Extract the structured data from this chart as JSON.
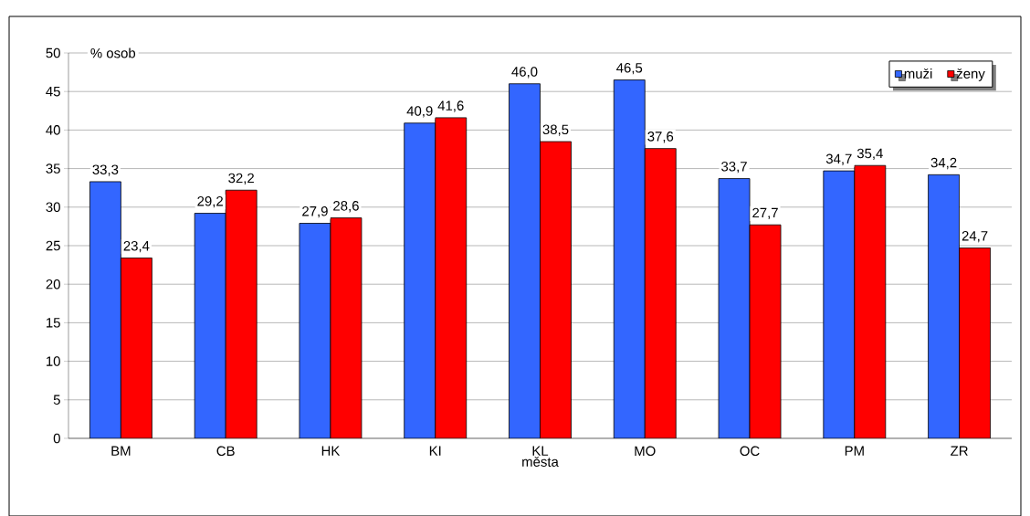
{
  "chart_data": {
    "type": "bar",
    "xlabel": "města",
    "ylabel": "% osob",
    "categories": [
      "BM",
      "CB",
      "HK",
      "KI",
      "KL",
      "MO",
      "OC",
      "PM",
      "ZR"
    ],
    "series": [
      {
        "name": "muži",
        "color": "#3366ff",
        "values": [
          33.3,
          29.2,
          27.9,
          40.9,
          46.0,
          46.5,
          33.7,
          34.7,
          34.2
        ],
        "value_labels": [
          "33,3",
          "29,2",
          "27,9",
          "40,9",
          "46,0",
          "46,5",
          "33,7",
          "34,7",
          "34,2"
        ]
      },
      {
        "name": "ženy",
        "color": "#ff0000",
        "values": [
          23.4,
          32.2,
          28.6,
          41.6,
          38.5,
          37.6,
          27.7,
          35.4,
          24.7
        ],
        "value_labels": [
          "23,4",
          "32,2",
          "28,6",
          "41,6",
          "38,5",
          "37,6",
          "27,7",
          "35,4",
          "24,7"
        ]
      }
    ],
    "ylim": [
      0,
      50
    ],
    "yticks": [
      0,
      5,
      10,
      15,
      20,
      25,
      30,
      35,
      40,
      45,
      50
    ],
    "grid": "y",
    "legend": "top right"
  }
}
